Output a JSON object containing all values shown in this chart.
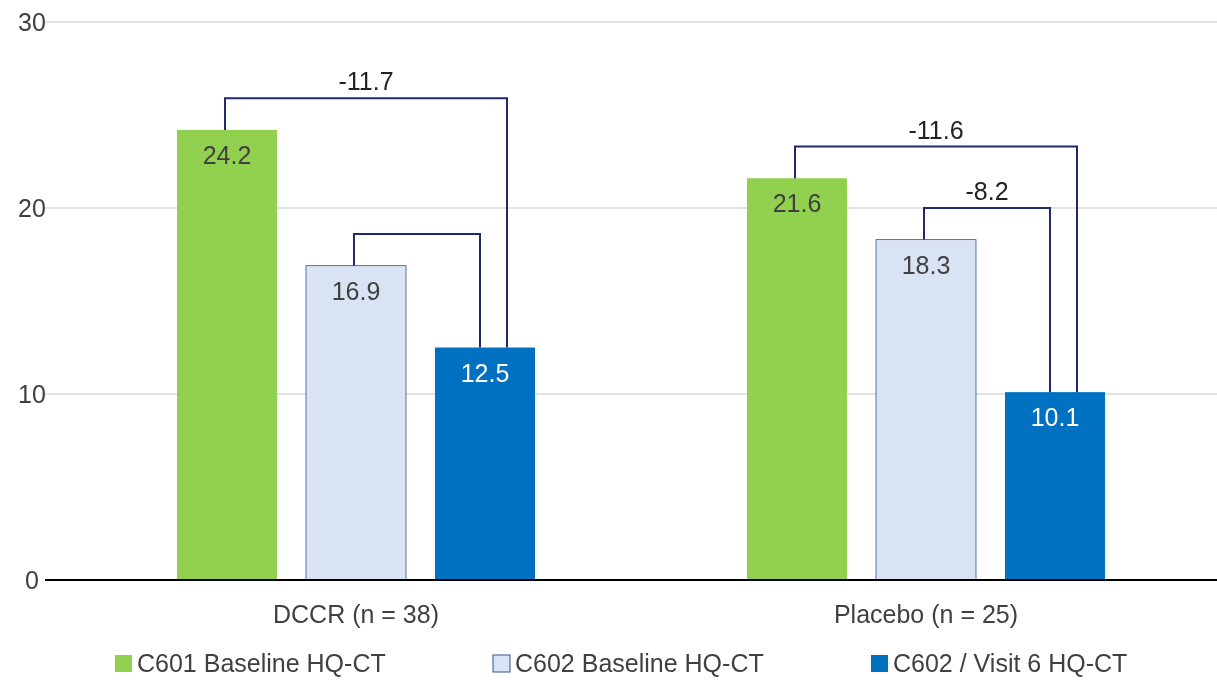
{
  "chart_data": {
    "type": "bar",
    "categories": [
      "DCCR (n = 38)",
      "Placebo (n = 25)"
    ],
    "series": [
      {
        "name": "C601 Baseline HQ-CT",
        "color": "#92d050",
        "values": [
          24.2,
          21.6
        ]
      },
      {
        "name": "C602 Baseline HQ-CT",
        "color": "#dae3f3",
        "values": [
          16.9,
          18.3
        ]
      },
      {
        "name": "C602 / Visit 6 HQ-CT",
        "color": "#0070c0",
        "values": [
          12.5,
          10.1
        ]
      }
    ],
    "ylim": [
      0,
      30
    ],
    "yticks": [
      0,
      10,
      20,
      30
    ],
    "grid": "y",
    "legend": "bottom",
    "data_labels": true,
    "annotations": [
      "-11.7",
      "-11.6",
      "-8.2"
    ]
  }
}
